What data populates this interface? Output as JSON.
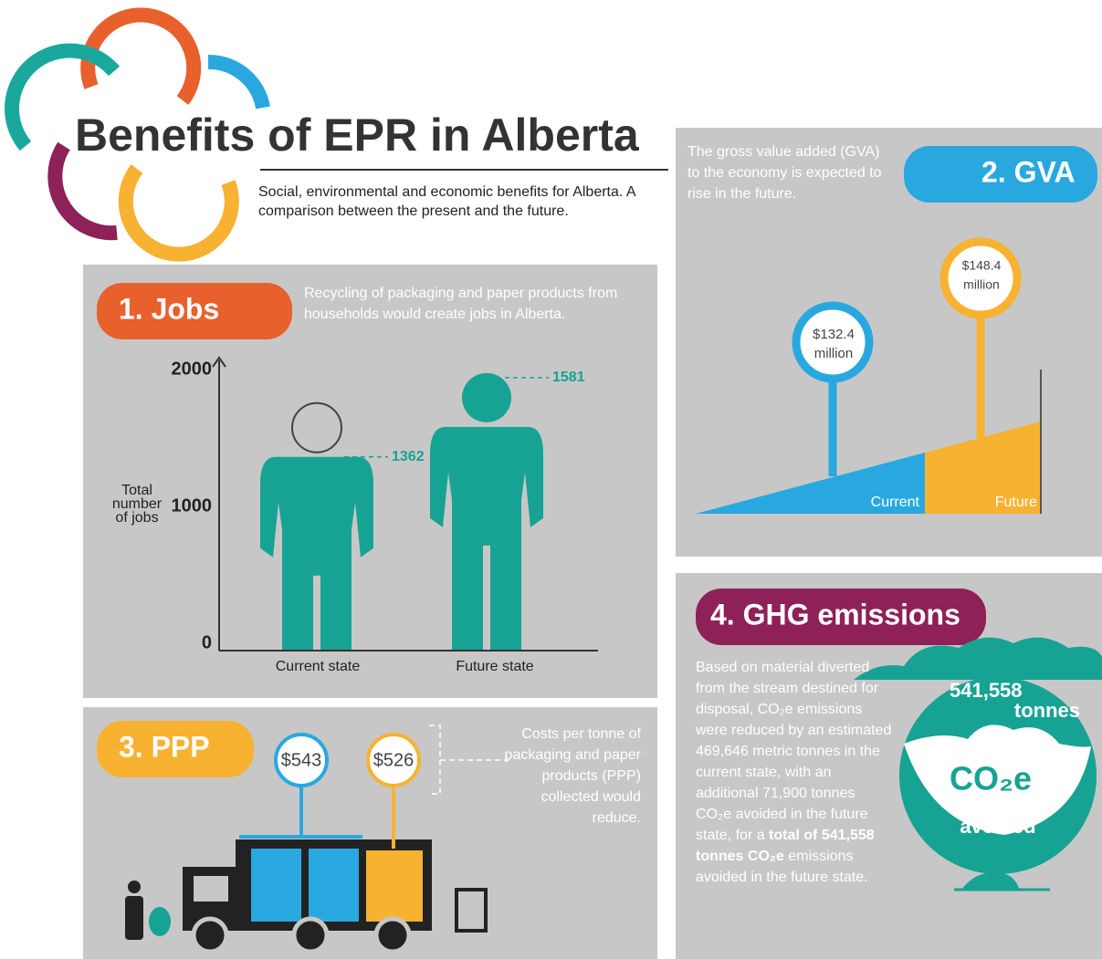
{
  "header": {
    "title": "Benefits of EPR in Alberta",
    "subtitle": "Social, environmental and economic benefits for Alberta. A comparison between the present and the future."
  },
  "jobs": {
    "heading": "1. Jobs",
    "description": "Recycling of packaging and paper products from households would create jobs in Alberta.",
    "y_label": [
      "Total",
      "number",
      "of jobs"
    ],
    "ticks": [
      2000,
      1000,
      0
    ],
    "categories": [
      "Current state",
      "Future state"
    ],
    "values": [
      1362,
      1581
    ]
  },
  "gva": {
    "heading": "2. GVA",
    "description": "The gross value added (GVA) to the economy is expected to rise in the future.",
    "pins": [
      [
        "$132.4",
        "million"
      ],
      [
        "$148.4",
        "million"
      ]
    ],
    "labels": [
      "Current",
      "Future"
    ]
  },
  "ppp": {
    "heading": "3. PPP",
    "pins": [
      "$543",
      "$526"
    ],
    "description": "Costs per tonne of packaging and paper products (PPP) collected would reduce."
  },
  "ghg": {
    "heading": "4. GHG emissions",
    "description": [
      "Based on material diverted from the stream destined for disposal, CO₂e emissions were reduced by an estimated 469,646 metric tonnes in the current state, with an additional 71,900 tonnes CO₂e avoided in the future state, for a ",
      "total of 541,558 tonnes CO₂e",
      " emissions avoided in the future state."
    ],
    "badge": [
      "541,558",
      "tonnes",
      "CO₂e",
      "avoided"
    ]
  }
}
